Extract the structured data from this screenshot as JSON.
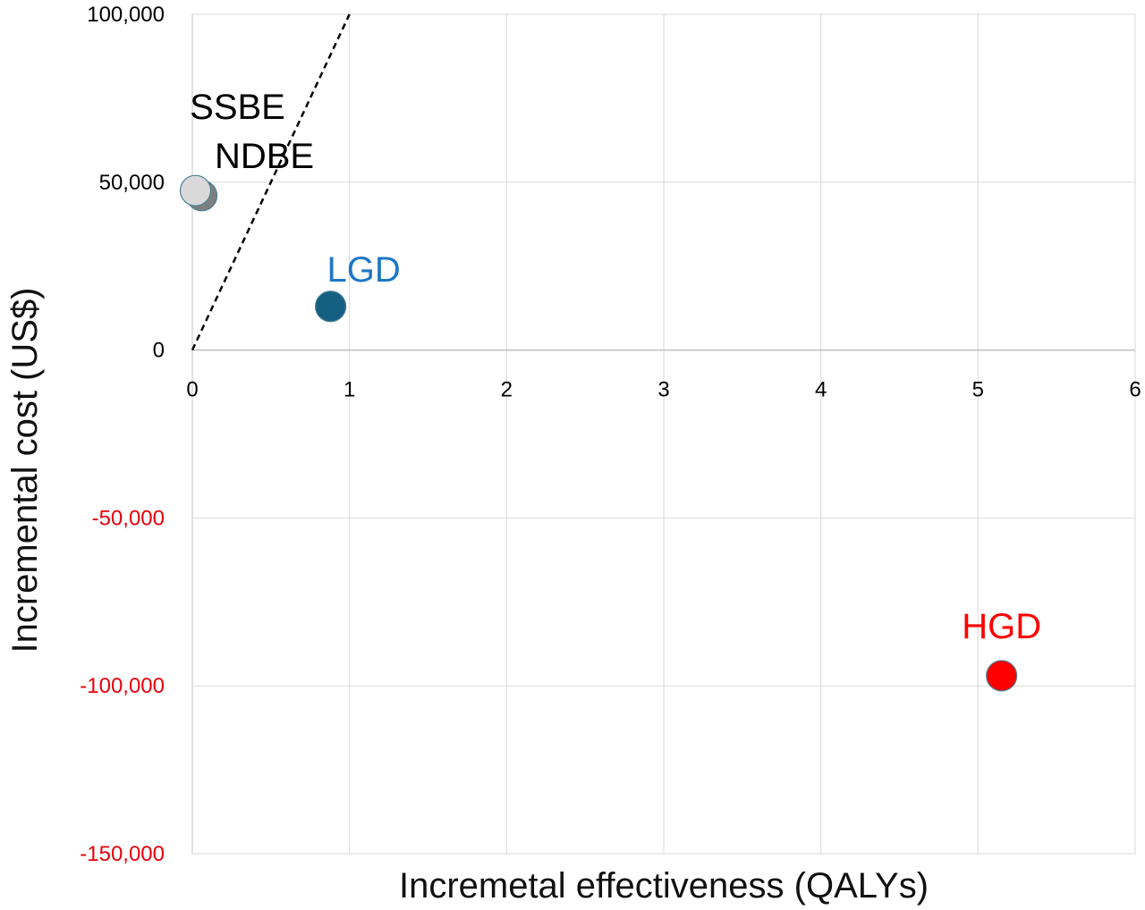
{
  "chart_data": {
    "type": "scatter",
    "title": "",
    "xlabel": "Incremetal effectiveness (QALYs)",
    "ylabel": "Incremental cost (US$)",
    "xlim": [
      0,
      6
    ],
    "ylim": [
      -150000,
      100000
    ],
    "grid": true,
    "x_ticks": [
      {
        "value": 0,
        "label": "0"
      },
      {
        "value": 1,
        "label": "1"
      },
      {
        "value": 2,
        "label": "2"
      },
      {
        "value": 3,
        "label": "3"
      },
      {
        "value": 4,
        "label": "4"
      },
      {
        "value": 5,
        "label": "5"
      },
      {
        "value": 6,
        "label": "6"
      }
    ],
    "y_ticks": [
      {
        "value": 100000,
        "label": "100,000",
        "color": "#000000"
      },
      {
        "value": 50000,
        "label": "50,000",
        "color": "#000000"
      },
      {
        "value": 0,
        "label": "0",
        "color": "#000000"
      },
      {
        "value": -50000,
        "label": "-50,000",
        "color": "#e8000b"
      },
      {
        "value": -100000,
        "label": "-100,000",
        "color": "#e8000b"
      },
      {
        "value": -150000,
        "label": "-150,000",
        "color": "#e8000b"
      }
    ],
    "threshold_line": {
      "from": [
        0,
        0
      ],
      "to": [
        1,
        100000
      ],
      "style": "dashed"
    },
    "points": [
      {
        "name": "NDBE",
        "x": 0.06,
        "y": 46000,
        "color": "#7f7f7f",
        "label_color": "#000000"
      },
      {
        "name": "SSBE",
        "x": 0.02,
        "y": 47500,
        "color": "#d9d9d9",
        "label_color": "#000000"
      },
      {
        "name": "LGD",
        "x": 0.88,
        "y": 13000,
        "color": "#156082",
        "label_color": "#1f77c4"
      },
      {
        "name": "HGD",
        "x": 5.15,
        "y": -97000,
        "color": "#ff0000",
        "label_color": "#ff0000"
      }
    ]
  }
}
